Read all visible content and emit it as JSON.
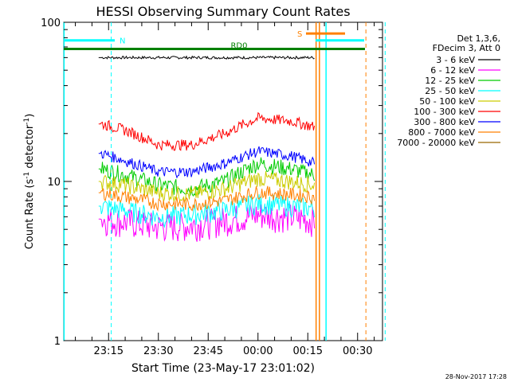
{
  "chart_data": {
    "type": "line",
    "title": "HESSI Observing Summary Count Rates",
    "ylabel_main": "Count Rate (s",
    "ylabel_sup": "-1",
    "ylabel_mid": " detector",
    "ylabel_end": ")",
    "xlabel": "Start Time (23-May-17 23:01:02)",
    "y_scale": "log",
    "ylim": [
      1,
      100
    ],
    "y_ticks": [
      {
        "value": 1,
        "label": "1"
      },
      {
        "value": 10,
        "label": "10"
      },
      {
        "value": 100,
        "label": "100"
      }
    ],
    "x_unit": "minutes since 23:00",
    "xlim": [
      1.5,
      97.5
    ],
    "x_ticks": [
      {
        "value": 15,
        "label": "23:15"
      },
      {
        "value": 30,
        "label": "23:30"
      },
      {
        "value": 45,
        "label": "23:45"
      },
      {
        "value": 60,
        "label": "00:00"
      },
      {
        "value": 75,
        "label": "00:15"
      },
      {
        "value": 90,
        "label": "00:30"
      }
    ],
    "legend_header": [
      "Det 1,3,6,",
      "FDecim 3, Att 0"
    ],
    "legend_placement": "right outside",
    "series": [
      {
        "name": "3 - 6 keV",
        "color": "#000000",
        "x": [
          12,
          13,
          20,
          30,
          40,
          50,
          60,
          70,
          77
        ],
        "values": [
          60,
          60,
          60,
          60,
          60,
          60,
          60,
          60,
          60
        ]
      },
      {
        "name": "6 - 12 keV",
        "color": "#ff00ff",
        "x": [
          12,
          13,
          20,
          30,
          40,
          50,
          60,
          70,
          77
        ],
        "values": [
          5.8,
          5.8,
          5.6,
          5.2,
          5.3,
          5.7,
          6.2,
          6.0,
          5.7
        ]
      },
      {
        "name": "12 - 25 keV",
        "color": "#00cc00",
        "x": [
          12,
          13,
          20,
          30,
          40,
          50,
          60,
          70,
          77
        ],
        "values": [
          12,
          12,
          11,
          9.5,
          9.0,
          10,
          13,
          12,
          11
        ]
      },
      {
        "name": "25 - 50 keV",
        "color": "#00ffff",
        "x": [
          12,
          13,
          20,
          30,
          40,
          50,
          60,
          70,
          77
        ],
        "values": [
          7.0,
          7.0,
          6.6,
          6.0,
          6.2,
          6.6,
          7.3,
          7.0,
          6.8
        ]
      },
      {
        "name": "50 - 100 keV",
        "color": "#cccc00",
        "x": [
          12,
          13,
          20,
          30,
          40,
          50,
          60,
          70,
          77
        ],
        "values": [
          10,
          10,
          9.5,
          8.5,
          8.3,
          9.0,
          10.5,
          10,
          9.5
        ]
      },
      {
        "name": "100 - 300 keV",
        "color": "#ff0000",
        "x": [
          12,
          13,
          20,
          30,
          40,
          50,
          60,
          70,
          77
        ],
        "values": [
          23,
          23,
          21,
          17,
          17,
          20,
          25,
          24,
          22
        ]
      },
      {
        "name": "300 - 800 keV",
        "color": "#0000ff",
        "x": [
          12,
          13,
          20,
          30,
          40,
          50,
          60,
          70,
          77
        ],
        "values": [
          15,
          15,
          13.5,
          11.5,
          11.5,
          13,
          15.5,
          14.5,
          13
        ]
      },
      {
        "name": "800 - 7000 keV",
        "color": "#ff8000",
        "x": [
          12,
          13,
          20,
          30,
          40,
          50,
          60,
          70,
          77
        ],
        "values": [
          8.5,
          8.5,
          8.0,
          7.3,
          7.2,
          7.6,
          8.6,
          8.3,
          8.0
        ]
      },
      {
        "name": "7000 - 20000 keV",
        "color": "#996600",
        "x": [],
        "values": []
      }
    ],
    "annotations": {
      "flag_rd0": {
        "label": "RD0",
        "color": "#008000",
        "value": 68
      },
      "flag_n": {
        "label": "N",
        "color": "#00ffff",
        "value": 77
      },
      "flag_s": {
        "label": "S",
        "color": "#ff8000",
        "value": 85
      },
      "cyan_dashed_lines_x": [
        15.8,
        98.3
      ],
      "cyan_solid_lines_x": [
        1.6,
        80.5
      ],
      "orange_solid_lines_x": [
        77.5,
        78.5
      ],
      "orange_dashed_lines_x": [
        92.5
      ]
    }
  },
  "footer": {
    "timestamp": "28-Nov-2017 17:28"
  }
}
